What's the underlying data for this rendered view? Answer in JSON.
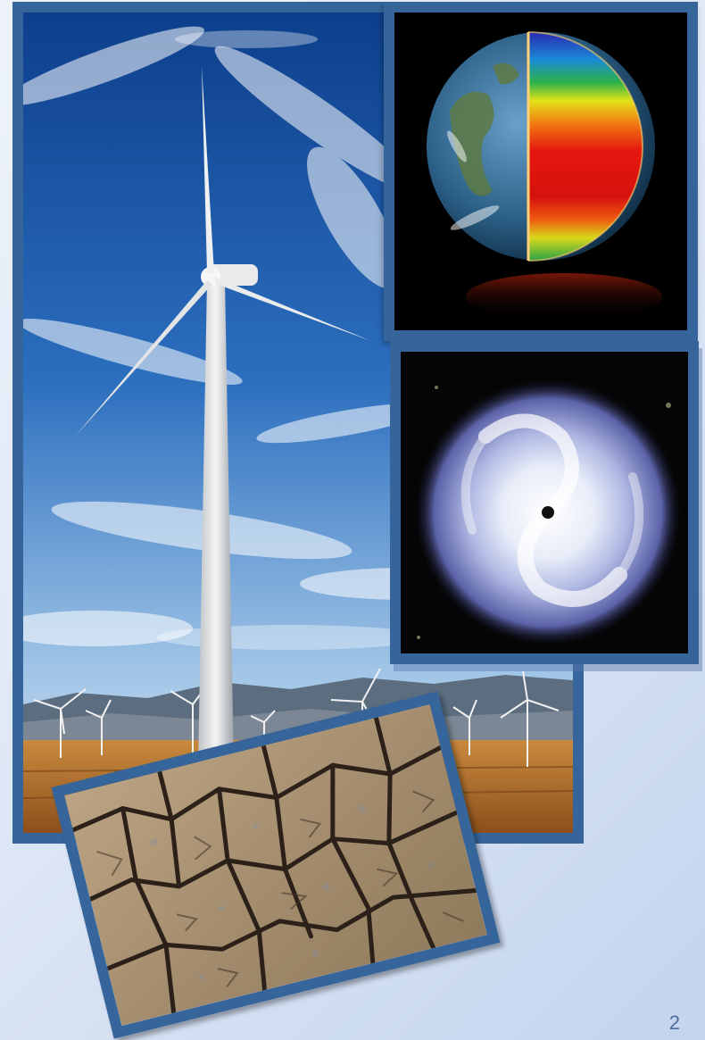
{
  "slide": {
    "page_number": "2",
    "background_color": "#dde6f4",
    "frame_color": "#35659b"
  },
  "photos": [
    {
      "icon": "wind-turbine-photo-icon"
    },
    {
      "icon": "earth-heat-map-globe-icon"
    },
    {
      "icon": "hurricane-satellite-image-icon"
    },
    {
      "icon": "cracked-dry-earth-photo-icon"
    }
  ]
}
